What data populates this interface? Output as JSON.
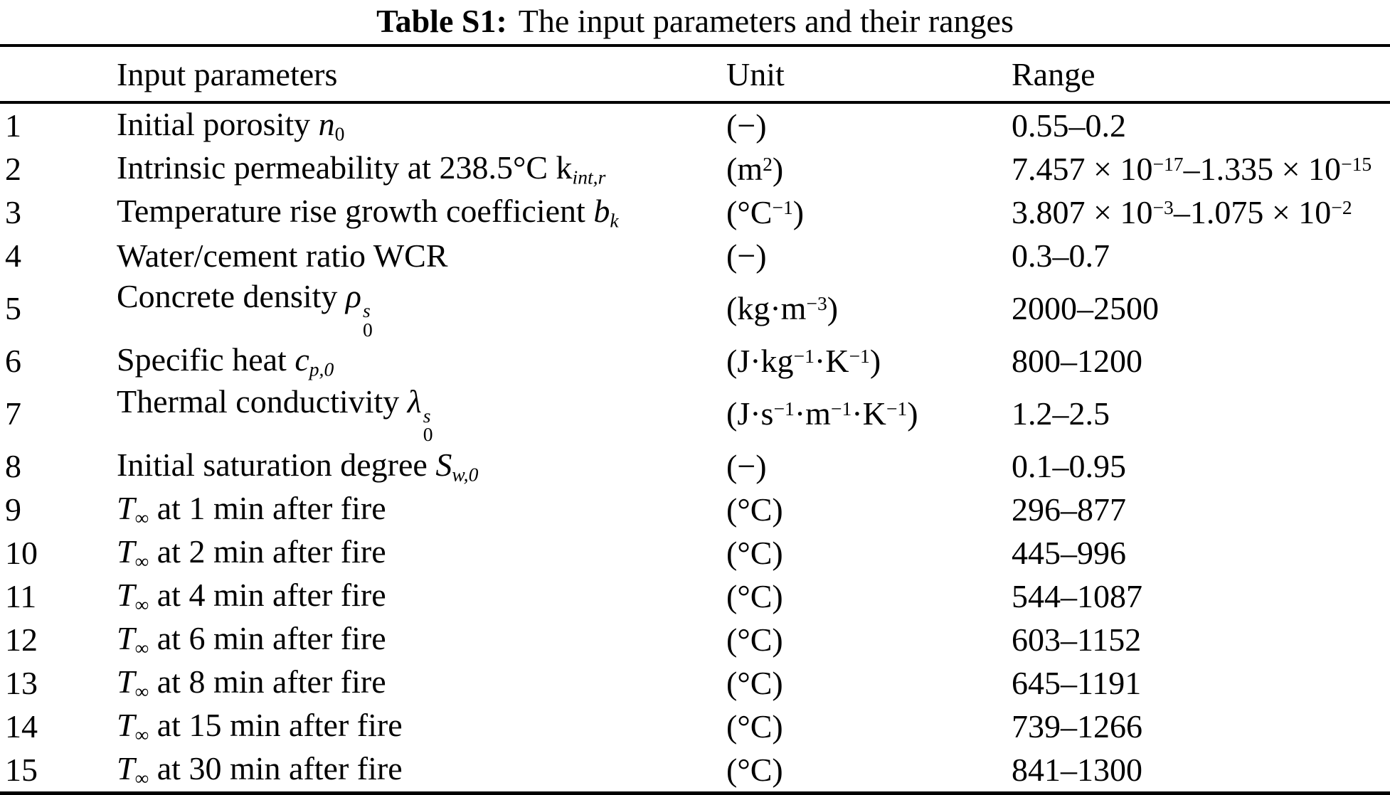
{
  "caption": {
    "label": "Table S1:",
    "text": "The input parameters and their ranges"
  },
  "table": {
    "headers": {
      "index": "",
      "parameters": "Input parameters",
      "unit": "Unit",
      "range": "Range"
    },
    "rows": [
      {
        "num": "1",
        "param": [
          {
            "t": "Initial porosity "
          },
          {
            "t": "n",
            "s": "i"
          },
          {
            "t": "0",
            "s": "sub"
          }
        ],
        "unit": [
          {
            "t": "(−)"
          }
        ],
        "range": [
          {
            "t": "0.55–0.2"
          }
        ]
      },
      {
        "num": "2",
        "param": [
          {
            "t": "Intrinsic permeability at 238.5°C k"
          },
          {
            "t": "int,r",
            "s": "subi"
          }
        ],
        "unit": [
          {
            "t": "(m"
          },
          {
            "t": "2",
            "s": "sup"
          },
          {
            "t": ")"
          }
        ],
        "range": [
          {
            "t": "7.457 × 10"
          },
          {
            "t": "−17",
            "s": "sup"
          },
          {
            "t": "–1.335 × 10"
          },
          {
            "t": "−15",
            "s": "sup"
          }
        ]
      },
      {
        "num": "3",
        "param": [
          {
            "t": "Temperature rise growth coefficient "
          },
          {
            "t": "b",
            "s": "i"
          },
          {
            "t": "k",
            "s": "subi"
          }
        ],
        "unit": [
          {
            "t": "(°C"
          },
          {
            "t": "−1",
            "s": "sup"
          },
          {
            "t": ")"
          }
        ],
        "range": [
          {
            "t": "3.807 × 10"
          },
          {
            "t": "−3",
            "s": "sup"
          },
          {
            "t": "–1.075 × 10"
          },
          {
            "t": "−2",
            "s": "sup"
          }
        ]
      },
      {
        "num": "4",
        "param": [
          {
            "t": "Water/cement ratio WCR"
          }
        ],
        "unit": [
          {
            "t": "(−)"
          }
        ],
        "range": [
          {
            "t": "0.3–0.7"
          }
        ]
      },
      {
        "num": "5",
        "param": [
          {
            "t": "Concrete density "
          },
          {
            "t": "ρ",
            "s": "i"
          },
          {
            "stack": {
              "top": "s",
              "bottom": "0"
            }
          }
        ],
        "unit": [
          {
            "t": "(kg·m"
          },
          {
            "t": "−3",
            "s": "sup"
          },
          {
            "t": ")"
          }
        ],
        "range": [
          {
            "t": "2000–2500"
          }
        ]
      },
      {
        "num": "6",
        "param": [
          {
            "t": "Specific heat "
          },
          {
            "t": "c",
            "s": "i"
          },
          {
            "t": "p,0",
            "s": "subi"
          }
        ],
        "unit": [
          {
            "t": "(J·kg"
          },
          {
            "t": "−1",
            "s": "sup"
          },
          {
            "t": "·K"
          },
          {
            "t": "−1",
            "s": "sup"
          },
          {
            "t": ")"
          }
        ],
        "range": [
          {
            "t": "800–1200"
          }
        ]
      },
      {
        "num": "7",
        "param": [
          {
            "t": "Thermal conductivity "
          },
          {
            "t": "λ",
            "s": "i"
          },
          {
            "stack": {
              "top": "s",
              "bottom": "0"
            }
          }
        ],
        "unit": [
          {
            "t": "(J·s"
          },
          {
            "t": "−1",
            "s": "sup"
          },
          {
            "t": "·m"
          },
          {
            "t": "−1",
            "s": "sup"
          },
          {
            "t": "·K"
          },
          {
            "t": "−1",
            "s": "sup"
          },
          {
            "t": ")"
          }
        ],
        "range": [
          {
            "t": "1.2–2.5"
          }
        ]
      },
      {
        "num": "8",
        "param": [
          {
            "t": "Initial saturation degree "
          },
          {
            "t": "S",
            "s": "i"
          },
          {
            "t": "w,0",
            "s": "subi"
          }
        ],
        "unit": [
          {
            "t": "(−)"
          }
        ],
        "range": [
          {
            "t": "0.1–0.95"
          }
        ]
      },
      {
        "num": "9",
        "param": [
          {
            "t": "T",
            "s": "i"
          },
          {
            "t": "∞",
            "s": "sub"
          },
          {
            "t": " at 1 min after fire"
          }
        ],
        "unit": [
          {
            "t": "(°C)"
          }
        ],
        "range": [
          {
            "t": "296–877"
          }
        ]
      },
      {
        "num": "10",
        "param": [
          {
            "t": "T",
            "s": "i"
          },
          {
            "t": "∞",
            "s": "sub"
          },
          {
            "t": " at 2 min after fire"
          }
        ],
        "unit": [
          {
            "t": "(°C)"
          }
        ],
        "range": [
          {
            "t": "445–996"
          }
        ]
      },
      {
        "num": "11",
        "param": [
          {
            "t": "T",
            "s": "i"
          },
          {
            "t": "∞",
            "s": "sub"
          },
          {
            "t": " at 4 min after fire"
          }
        ],
        "unit": [
          {
            "t": "(°C)"
          }
        ],
        "range": [
          {
            "t": "544–1087"
          }
        ]
      },
      {
        "num": "12",
        "param": [
          {
            "t": "T",
            "s": "i"
          },
          {
            "t": "∞",
            "s": "sub"
          },
          {
            "t": " at 6 min after fire"
          }
        ],
        "unit": [
          {
            "t": "(°C)"
          }
        ],
        "range": [
          {
            "t": "603–1152"
          }
        ]
      },
      {
        "num": "13",
        "param": [
          {
            "t": "T",
            "s": "i"
          },
          {
            "t": "∞",
            "s": "sub"
          },
          {
            "t": " at 8 min after fire"
          }
        ],
        "unit": [
          {
            "t": "(°C)"
          }
        ],
        "range": [
          {
            "t": "645–1191"
          }
        ]
      },
      {
        "num": "14",
        "param": [
          {
            "t": "T",
            "s": "i"
          },
          {
            "t": "∞",
            "s": "sub"
          },
          {
            "t": " at 15 min after fire"
          }
        ],
        "unit": [
          {
            "t": "(°C)"
          }
        ],
        "range": [
          {
            "t": "739–1266"
          }
        ]
      },
      {
        "num": "15",
        "param": [
          {
            "t": "T",
            "s": "i"
          },
          {
            "t": "∞",
            "s": "sub"
          },
          {
            "t": " at 30 min after fire"
          }
        ],
        "unit": [
          {
            "t": "(°C)"
          }
        ],
        "range": [
          {
            "t": "841–1300"
          }
        ]
      }
    ]
  }
}
